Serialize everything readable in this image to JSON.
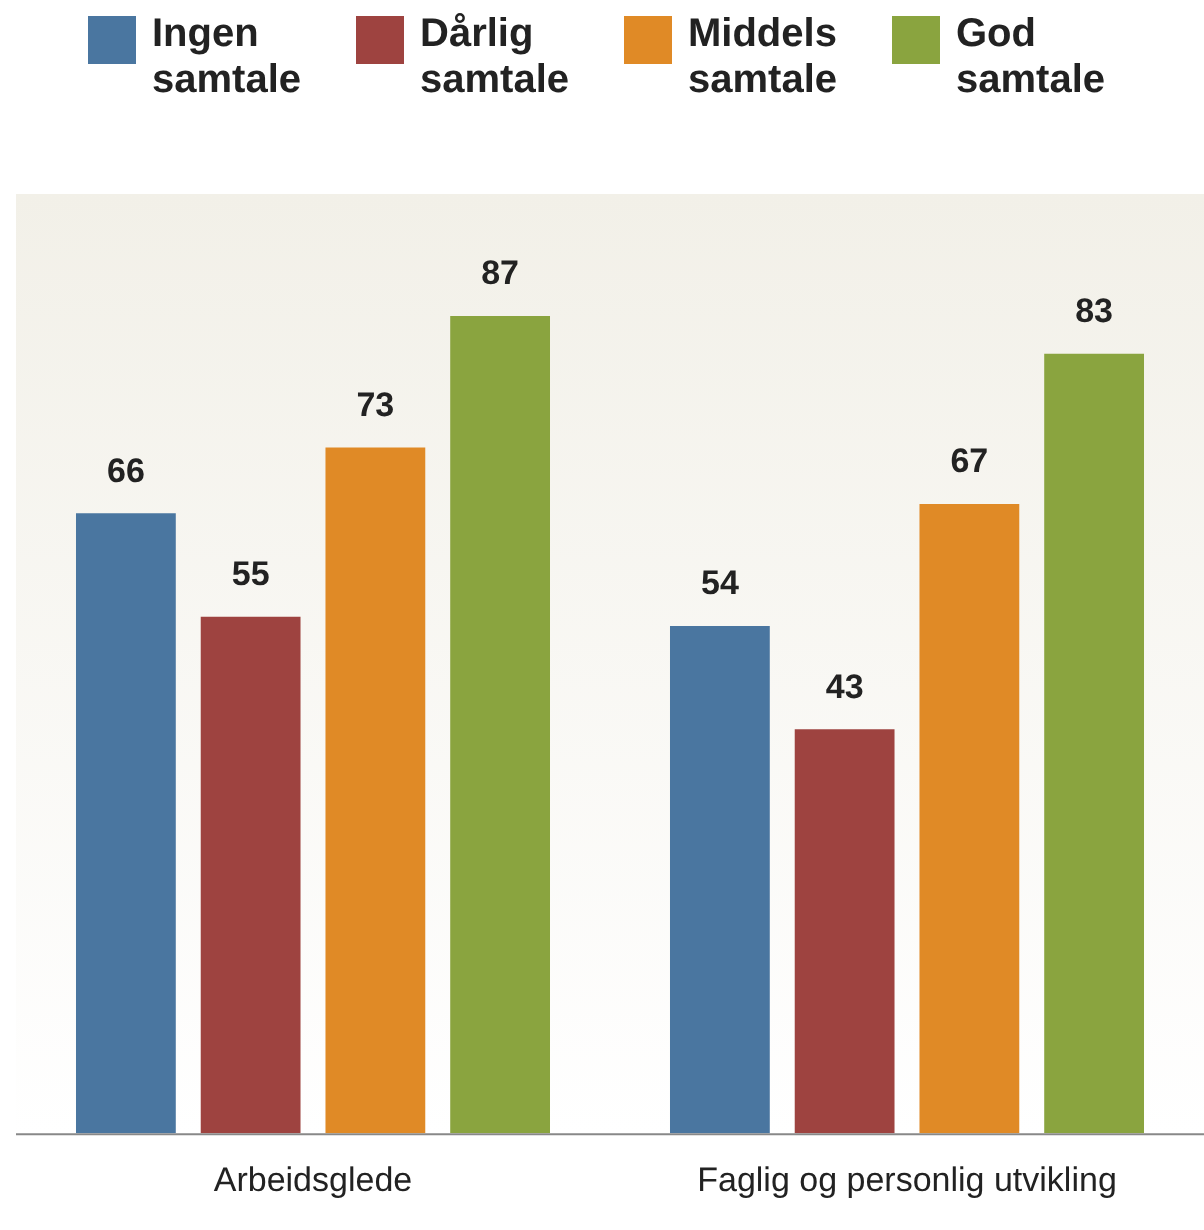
{
  "chart_data": {
    "type": "bar",
    "categories": [
      "Arbeidsglede",
      "Faglig og personlig utvikling"
    ],
    "series": [
      {
        "name": "Ingen samtale",
        "color": "#4a76a0",
        "values": [
          66,
          54
        ]
      },
      {
        "name": "Dårlig samtale",
        "color": "#9e4340",
        "values": [
          55,
          43
        ]
      },
      {
        "name": "Middels samtale",
        "color": "#e08a26",
        "values": [
          73,
          67
        ]
      },
      {
        "name": "God samtale",
        "color": "#8aa43f",
        "values": [
          87,
          83
        ]
      }
    ],
    "ylim": [
      0,
      100
    ],
    "tick_labels": "x",
    "grid": false,
    "legend": "top",
    "data_labels": true
  }
}
